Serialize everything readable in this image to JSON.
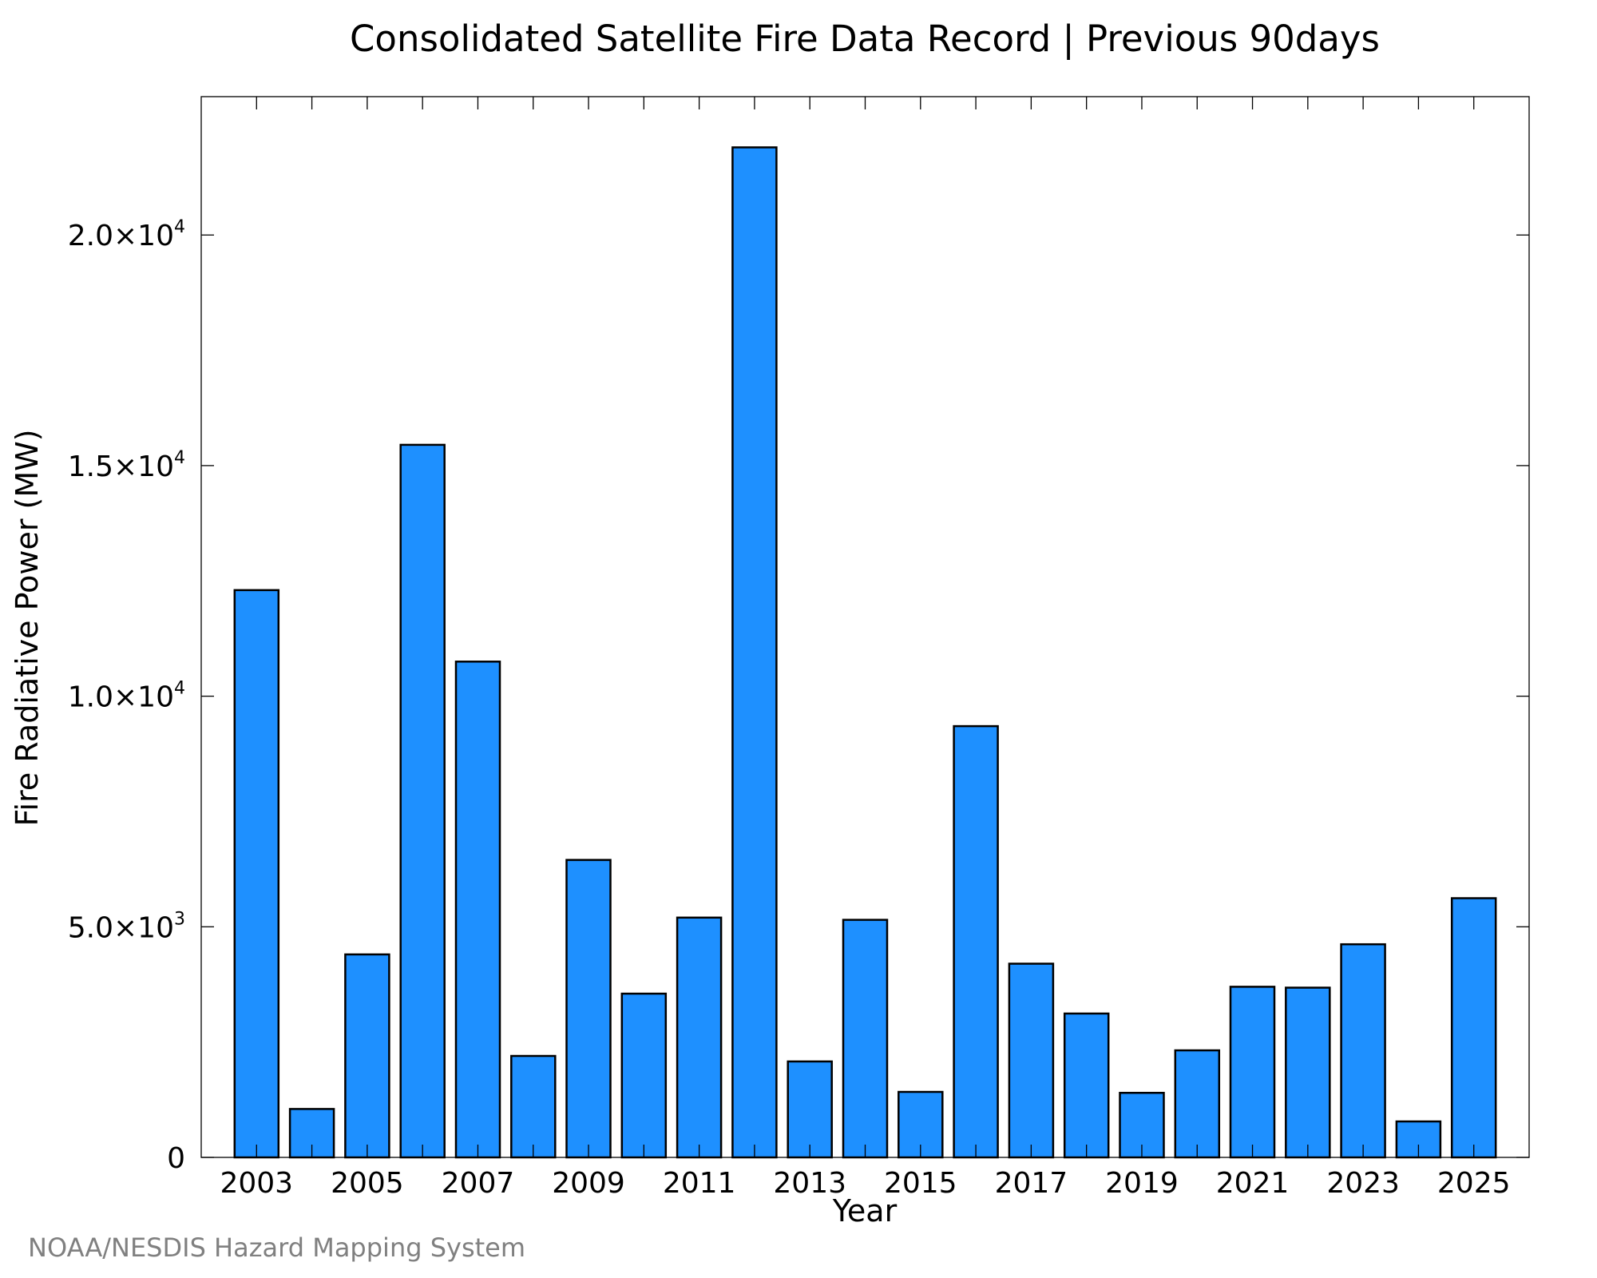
{
  "colors": {
    "bar_fill": "#1e90ff",
    "bar_stroke": "#000000",
    "axis": "#000000",
    "credit_text": "#808080",
    "background": "#ffffff"
  },
  "credit": "NOAA/NESDIS Hazard Mapping System",
  "chart_data": {
    "type": "bar",
    "title": "Consolidated Satellite Fire Data Record | Previous 90days",
    "xlabel": "Year",
    "ylabel": "Fire Radiative Power (MW)",
    "categories": [
      "2003",
      "2004",
      "2005",
      "2006",
      "2007",
      "2008",
      "2009",
      "2010",
      "2011",
      "2012",
      "2013",
      "2014",
      "2015",
      "2016",
      "2017",
      "2018",
      "2019",
      "2020",
      "2021",
      "2022",
      "2023",
      "2024",
      "2025"
    ],
    "values": [
      12300,
      1050,
      4400,
      15450,
      10750,
      2200,
      6450,
      3550,
      5200,
      21900,
      2080,
      5150,
      1420,
      9350,
      4200,
      3120,
      1400,
      2320,
      3700,
      3680,
      4620,
      780,
      5620
    ],
    "x_tick_labels": [
      "2003",
      "2005",
      "2007",
      "2009",
      "2011",
      "2013",
      "2015",
      "2017",
      "2019",
      "2021",
      "2023",
      "2025"
    ],
    "y_ticks": [
      {
        "value": 0,
        "mantissa": "0",
        "exponent": ""
      },
      {
        "value": 5000,
        "mantissa": "5.0×10",
        "exponent": "3"
      },
      {
        "value": 10000,
        "mantissa": "1.0×10",
        "exponent": "4"
      },
      {
        "value": 15000,
        "mantissa": "1.5×10",
        "exponent": "4"
      },
      {
        "value": 20000,
        "mantissa": "2.0×10",
        "exponent": "4"
      }
    ],
    "ylim": [
      0,
      23000
    ],
    "xlim": [
      2002,
      2026
    ],
    "grid": false,
    "legend": "none"
  }
}
